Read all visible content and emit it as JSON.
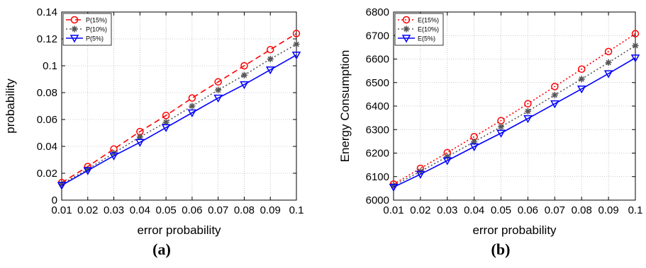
{
  "chart_data": [
    {
      "type": "line",
      "caption": "(a)",
      "xlabel": "error probability",
      "ylabel": "probability",
      "x": [
        0.01,
        0.02,
        0.03,
        0.04,
        0.05,
        0.06,
        0.07,
        0.08,
        0.09,
        0.1
      ],
      "xlim": [
        0.01,
        0.1
      ],
      "ylim": [
        0,
        0.14
      ],
      "xticks": [
        "0.01",
        "0.02",
        "0.03",
        "0.04",
        "0.05",
        "0.06",
        "0.07",
        "0.08",
        "0.09",
        "0.1"
      ],
      "yticks": [
        "0",
        "0.02",
        "0.04",
        "0.06",
        "0.08",
        "0.1",
        "0.12",
        "0.14"
      ],
      "xtick_values": [
        0.01,
        0.02,
        0.03,
        0.04,
        0.05,
        0.06,
        0.07,
        0.08,
        0.09,
        0.1
      ],
      "ytick_values": [
        0,
        0.02,
        0.04,
        0.06,
        0.08,
        0.1,
        0.12,
        0.14
      ],
      "grid": true,
      "legend_position": "top-left",
      "series": [
        {
          "name": "P(15%)",
          "color": "#ff0000",
          "dash": "dashed",
          "marker": "circle",
          "values": [
            0.013,
            0.025,
            0.038,
            0.051,
            0.063,
            0.076,
            0.088,
            0.1,
            0.112,
            0.124
          ]
        },
        {
          "name": "P(10%)",
          "color": "#555555",
          "dash": "dotted",
          "marker": "star",
          "values": [
            0.012,
            0.023,
            0.035,
            0.047,
            0.058,
            0.07,
            0.082,
            0.093,
            0.105,
            0.116
          ]
        },
        {
          "name": "P(5%)",
          "color": "#0000ff",
          "dash": "solid",
          "marker": "triangle-down",
          "values": [
            0.011,
            0.022,
            0.033,
            0.043,
            0.054,
            0.065,
            0.076,
            0.086,
            0.097,
            0.108
          ]
        }
      ]
    },
    {
      "type": "line",
      "caption": "(b)",
      "xlabel": "error probability",
      "ylabel": "Energy Consumption",
      "x": [
        0.01,
        0.02,
        0.03,
        0.04,
        0.05,
        0.06,
        0.07,
        0.08,
        0.09,
        0.1
      ],
      "xlim": [
        0.01,
        0.1
      ],
      "ylim": [
        6000,
        6800
      ],
      "xticks": [
        "0.01",
        "0.02",
        "0.03",
        "0.04",
        "0.05",
        "0.06",
        "0.07",
        "0.08",
        "0.09",
        "0.1"
      ],
      "yticks": [
        "6000",
        "6100",
        "6200",
        "6300",
        "6400",
        "6500",
        "6600",
        "6700",
        "6800"
      ],
      "xtick_values": [
        0.01,
        0.02,
        0.03,
        0.04,
        0.05,
        0.06,
        0.07,
        0.08,
        0.09,
        0.1
      ],
      "ytick_values": [
        6000,
        6100,
        6200,
        6300,
        6400,
        6500,
        6600,
        6700,
        6800
      ],
      "grid": true,
      "legend_position": "top-left",
      "series": [
        {
          "name": "E(15%)",
          "color": "#ff0000",
          "dash": "dotted",
          "marker": "circle",
          "values": [
            6068,
            6135,
            6202,
            6270,
            6338,
            6410,
            6483,
            6557,
            6632,
            6708
          ]
        },
        {
          "name": "E(10%)",
          "color": "#555555",
          "dash": "dotted",
          "marker": "star",
          "values": [
            6062,
            6122,
            6185,
            6248,
            6312,
            6378,
            6447,
            6515,
            6585,
            6657
          ]
        },
        {
          "name": "E(5%)",
          "color": "#0000ff",
          "dash": "solid",
          "marker": "triangle-down",
          "values": [
            6055,
            6110,
            6168,
            6227,
            6285,
            6347,
            6410,
            6473,
            6538,
            6605
          ]
        }
      ]
    }
  ]
}
